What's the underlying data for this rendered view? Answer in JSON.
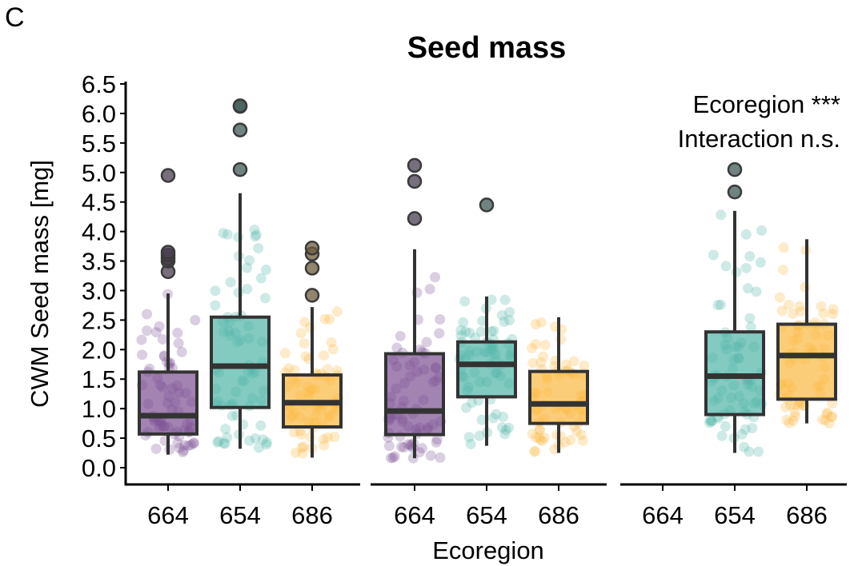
{
  "panel_label": "C",
  "title": "Seed mass",
  "annotations": [
    "Ecoregion ***",
    "Interaction n.s."
  ],
  "colors": {
    "664": "#7a4f92",
    "654": "#4fb3a6",
    "686": "#fbb83f",
    "outlier": "#3a3a3a",
    "box_line": "#333333"
  },
  "chart_data": {
    "type": "boxplot",
    "title": "Seed mass",
    "xlabel": "Ecoregion",
    "ylabel": "CWM Seed mass [mg]",
    "ylim": [
      0,
      6.5
    ],
    "yticks": [
      "0.0",
      "0.5",
      "1.0",
      "1.5",
      "2.0",
      "2.5",
      "3.0",
      "3.5",
      "4.0",
      "4.5",
      "5.0",
      "5.5",
      "6.0",
      "6.5"
    ],
    "categories": [
      "664",
      "654",
      "686"
    ],
    "grid": false,
    "legend": "none",
    "facets": [
      {
        "boxes": [
          {
            "category": "664",
            "q1": 0.57,
            "median": 0.88,
            "q3": 1.62,
            "whisker_low": 0.22,
            "whisker_high": 2.95,
            "outliers": [
              3.32,
              3.5,
              3.55,
              3.6,
              3.65,
              4.95
            ]
          },
          {
            "category": "654",
            "q1": 1.02,
            "median": 1.72,
            "q3": 2.55,
            "whisker_low": 0.32,
            "whisker_high": 4.65,
            "outliers": [
              5.05,
              5.72,
              6.12,
              6.13
            ]
          },
          {
            "category": "686",
            "q1": 0.69,
            "median": 1.1,
            "q3": 1.57,
            "whisker_low": 0.17,
            "whisker_high": 2.72,
            "outliers": [
              2.92,
              3.38,
              3.62,
              3.72
            ]
          }
        ]
      },
      {
        "boxes": [
          {
            "category": "664",
            "q1": 0.56,
            "median": 0.96,
            "q3": 1.93,
            "whisker_low": 0.16,
            "whisker_high": 3.7,
            "outliers": [
              4.22,
              4.85,
              5.12
            ]
          },
          {
            "category": "654",
            "q1": 1.2,
            "median": 1.75,
            "q3": 2.13,
            "whisker_low": 0.37,
            "whisker_high": 2.9,
            "outliers": [
              4.45
            ]
          },
          {
            "category": "686",
            "q1": 0.75,
            "median": 1.08,
            "q3": 1.63,
            "whisker_low": 0.25,
            "whisker_high": 2.55,
            "outliers": []
          }
        ]
      },
      {
        "boxes": [
          {
            "category": "654",
            "q1": 0.9,
            "median": 1.55,
            "q3": 2.3,
            "whisker_low": 0.25,
            "whisker_high": 4.35,
            "outliers": [
              4.67,
              5.05
            ]
          },
          {
            "category": "686",
            "q1": 1.16,
            "median": 1.9,
            "q3": 2.43,
            "whisker_low": 0.75,
            "whisker_high": 3.87,
            "outliers": []
          }
        ]
      }
    ]
  }
}
